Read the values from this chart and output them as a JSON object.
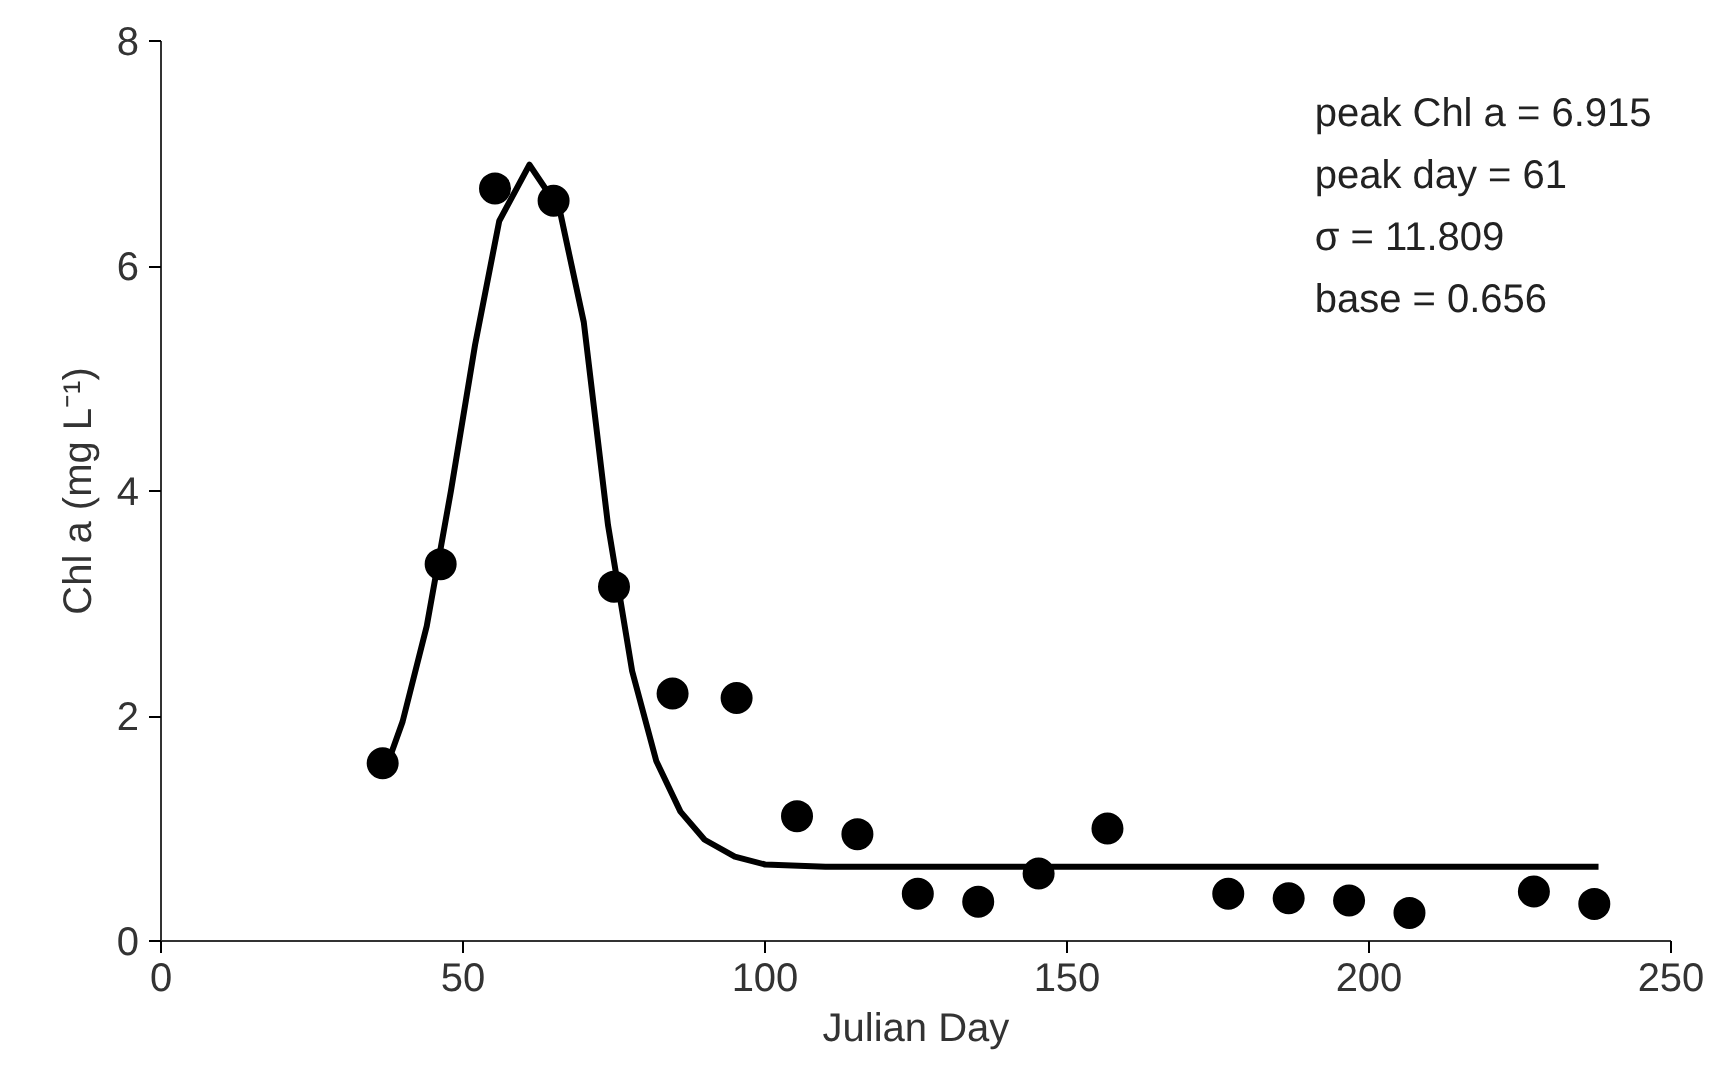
{
  "chart_data": {
    "type": "scatter",
    "xlabel": "Julian Day",
    "ylabel": "Chl a (mg L⁻¹)",
    "xlim": [
      0,
      250
    ],
    "ylim": [
      0,
      8
    ],
    "xticks": [
      0,
      50,
      100,
      150,
      200,
      250
    ],
    "yticks": [
      0,
      2,
      4,
      6,
      8
    ],
    "grid": false,
    "marker": "circle",
    "annotations": [
      "peak Chl a = 6.915",
      "peak day = 61",
      "σ = 11.809",
      "base = 0.656"
    ],
    "series": [
      {
        "color": "#000000",
        "x": [
          36.7,
          46.3,
          55.3,
          65,
          75,
          84.7,
          95.3,
          105.3,
          115.3,
          125.3,
          135.3,
          145.3,
          156.7,
          176.7,
          186.7,
          196.7,
          206.7,
          227.3,
          237.3
        ],
        "values": [
          1.58,
          3.35,
          6.69,
          6.58,
          3.15,
          2.2,
          2.16,
          1.11,
          0.95,
          0.42,
          0.35,
          0.6,
          1.0,
          0.42,
          0.38,
          0.36,
          0.25,
          0.44,
          0.33
        ]
      },
      {
        "type": "line",
        "color": "#000000",
        "marker": "none",
        "line_style": "solid",
        "x": [
          37,
          40,
          44,
          48,
          52,
          56,
          61,
          66,
          70,
          74,
          78,
          82,
          86,
          90,
          95,
          100,
          110,
          238
        ],
        "values": [
          1.5,
          1.95,
          2.8,
          4.0,
          5.3,
          6.4,
          6.9,
          6.5,
          5.5,
          3.7,
          2.4,
          1.6,
          1.15,
          0.9,
          0.75,
          0.68,
          0.66,
          0.66
        ]
      }
    ]
  }
}
